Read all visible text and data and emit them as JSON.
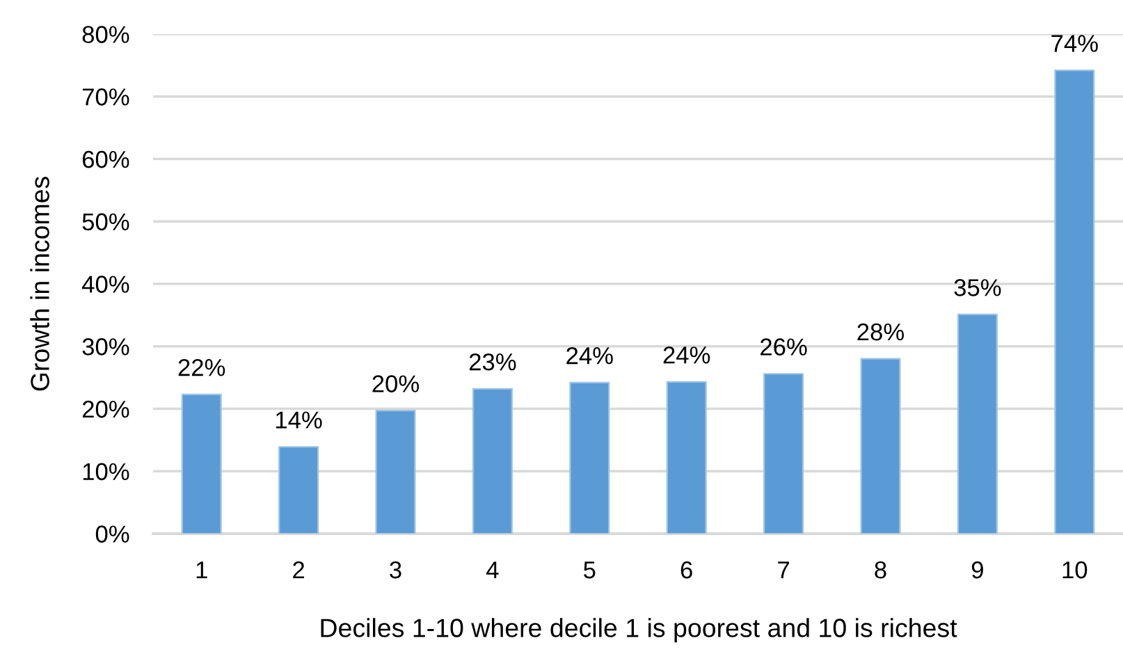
{
  "chart_data": {
    "type": "bar",
    "xlabel": "Deciles 1-10 where decile 1 is poorest and 10 is richest",
    "ylabel": "Growth in incomes",
    "categories": [
      "1",
      "2",
      "3",
      "4",
      "5",
      "6",
      "7",
      "8",
      "9",
      "10"
    ],
    "values": [
      22.3,
      13.9,
      19.7,
      23.2,
      24.2,
      24.3,
      25.6,
      28.0,
      35.1,
      74.2
    ],
    "value_labels": [
      "22%",
      "14%",
      "20%",
      "23%",
      "24%",
      "24%",
      "26%",
      "28%",
      "35%",
      "74%"
    ],
    "color": "#5b9bd5",
    "ylim": [
      0,
      80
    ],
    "yticks": [
      {
        "value": 0,
        "label": "0%"
      },
      {
        "value": 10,
        "label": "10%"
      },
      {
        "value": 20,
        "label": "20%"
      },
      {
        "value": 30,
        "label": "30%"
      },
      {
        "value": 40,
        "label": "40%"
      },
      {
        "value": 50,
        "label": "50%"
      },
      {
        "value": 60,
        "label": "60%"
      },
      {
        "value": 70,
        "label": "70%"
      },
      {
        "value": 80,
        "label": "80%"
      }
    ],
    "grid": "y",
    "legend": false
  }
}
